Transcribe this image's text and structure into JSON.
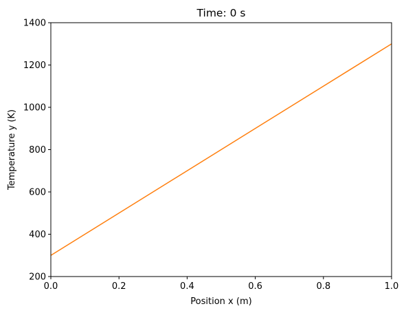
{
  "chart_data": {
    "type": "line",
    "title": "Time: 0 s",
    "xlabel": "Position x (m)",
    "ylabel": "Temperature y (K)",
    "xlim": [
      0.0,
      1.0
    ],
    "ylim": [
      200,
      1400
    ],
    "xticks": [
      "0.0",
      "0.2",
      "0.4",
      "0.6",
      "0.8",
      "1.0"
    ],
    "yticks": [
      "200",
      "400",
      "600",
      "800",
      "1000",
      "1200",
      "1400"
    ],
    "grid": false,
    "series": [
      {
        "color": "#ff7f0e",
        "x": [
          0.0,
          1.0
        ],
        "y": [
          300,
          1300
        ]
      }
    ]
  }
}
